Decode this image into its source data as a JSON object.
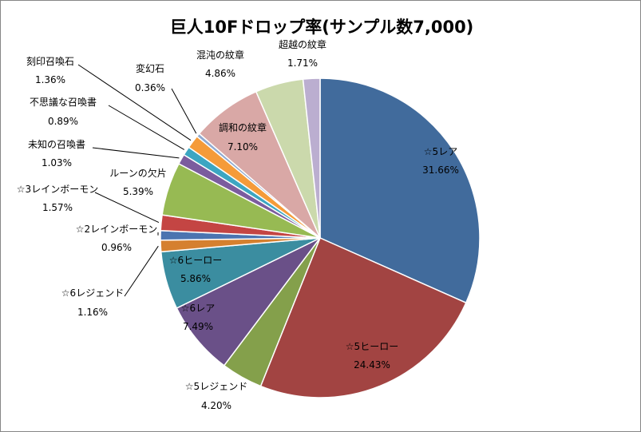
{
  "chart_data": {
    "type": "pie",
    "title": "巨人10Fドロップ率(サンプル数7,000)",
    "legend": "none",
    "slices": [
      {
        "name": "☆5レア",
        "value": 31.66,
        "label": "31.66%",
        "color": "#416B9C"
      },
      {
        "name": "☆5ヒーロー",
        "value": 24.43,
        "label": "24.43%",
        "color": "#A24442"
      },
      {
        "name": "☆5レジェンド",
        "value": 4.2,
        "label": "4.20%",
        "color": "#84A04B"
      },
      {
        "name": "☆6レア",
        "value": 7.49,
        "label": "7.49%",
        "color": "#6A5088"
      },
      {
        "name": "☆6ヒーロー",
        "value": 5.86,
        "label": "5.86%",
        "color": "#3B8DA0"
      },
      {
        "name": "☆6レジェンド",
        "value": 1.16,
        "label": "1.16%",
        "color": "#D5802F"
      },
      {
        "name": "☆2レインボーモン",
        "value": 0.96,
        "label": "0.96%",
        "color": "#4B74B0"
      },
      {
        "name": "☆3レインボーモン",
        "value": 1.57,
        "label": "1.57%",
        "color": "#C44543"
      },
      {
        "name": "ルーンの欠片",
        "value": 5.39,
        "label": "5.39%",
        "color": "#97BA53"
      },
      {
        "name": "未知の召喚書",
        "value": 1.03,
        "label": "1.03%",
        "color": "#7B5C9E"
      },
      {
        "name": "不思議な召喚書",
        "value": 0.89,
        "label": "0.89%",
        "color": "#3CA6C2"
      },
      {
        "name": "刻印召喚石",
        "value": 1.36,
        "label": "1.36%",
        "color": "#F59B39"
      },
      {
        "name": "変幻石",
        "value": 0.36,
        "label": "0.36%",
        "color": "#8FA9D0"
      },
      {
        "name": "調和の紋章",
        "value": 7.1,
        "label": "7.10%",
        "color": "#D9A8A6"
      },
      {
        "name": "混沌の紋章",
        "value": 4.86,
        "label": "4.86%",
        "color": "#CBD9AC"
      },
      {
        "name": "超越の紋章",
        "value": 1.71,
        "label": "1.71%",
        "color": "#BBAED0"
      }
    ]
  }
}
